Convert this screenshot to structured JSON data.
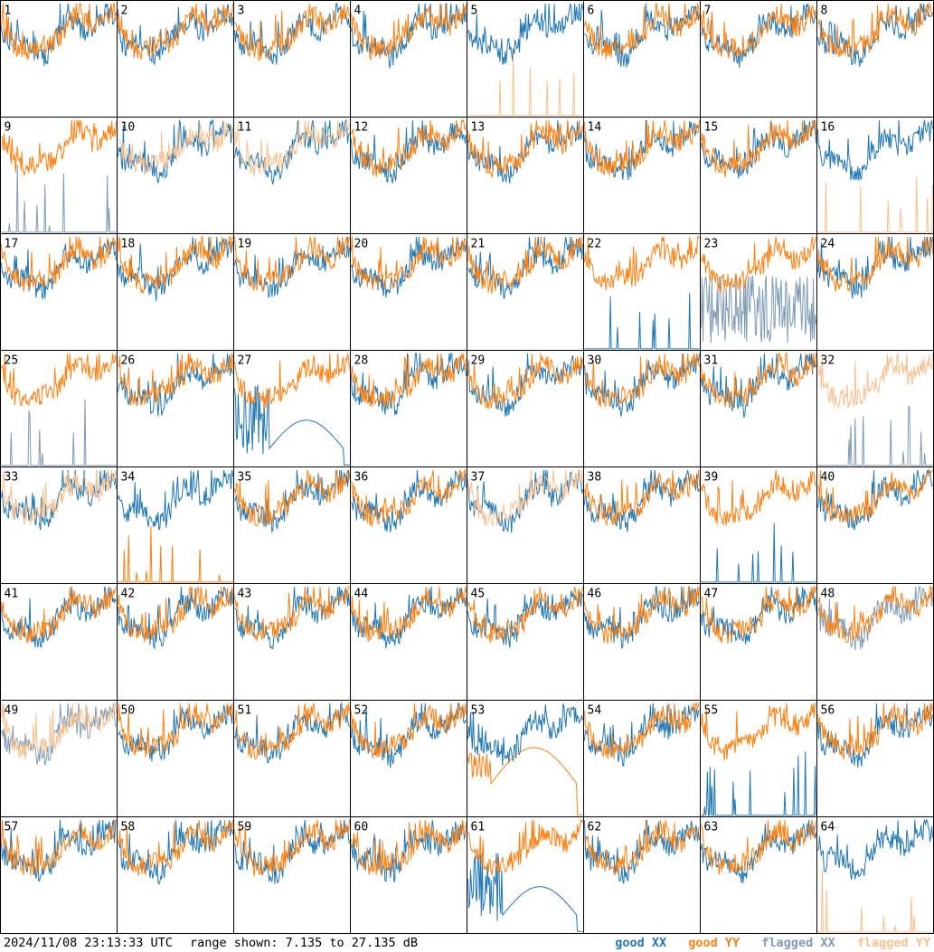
{
  "chart_data": {
    "type": "line",
    "grid": {
      "rows": 8,
      "cols": 8
    },
    "tile_ids": [
      "1",
      "2",
      "3",
      "4",
      "5",
      "6",
      "7",
      "8",
      "9",
      "10",
      "11",
      "12",
      "13",
      "14",
      "15",
      "16",
      "17",
      "18",
      "19",
      "20",
      "21",
      "22",
      "23",
      "24",
      "25",
      "26",
      "27",
      "28",
      "29",
      "30",
      "31",
      "32",
      "33",
      "34",
      "35",
      "36",
      "37",
      "38",
      "39",
      "40",
      "41",
      "42",
      "43",
      "44",
      "45",
      "46",
      "47",
      "48",
      "49",
      "50",
      "51",
      "52",
      "53",
      "54",
      "55",
      "56",
      "57",
      "58",
      "59",
      "60",
      "61",
      "62",
      "63",
      "64"
    ],
    "series": [
      {
        "name": "good XX",
        "color": "#1f77b4"
      },
      {
        "name": "good YY",
        "color": "#ff7f0e"
      },
      {
        "name": "flagged XX",
        "color": "#7f9bb5"
      },
      {
        "name": "flagged YY",
        "color": "#f9c08e"
      }
    ],
    "range_db": [
      7.135,
      27.135
    ],
    "tiles_special": {
      "5": {
        "xx": "good",
        "yy": "flagged_spikes"
      },
      "9": {
        "xx": "flagged_spikes",
        "yy": "good"
      },
      "10": {
        "xx": "good",
        "yy": "flagged"
      },
      "11": {
        "xx": "good",
        "yy": "flagged"
      },
      "16": {
        "xx": "good",
        "yy": "flagged_spikes"
      },
      "22": {
        "xx": "good_spikes",
        "yy": "good"
      },
      "23": {
        "xx": "flagged_noisy",
        "yy": "good"
      },
      "25": {
        "xx": "flagged_spikes",
        "yy": "good"
      },
      "27": {
        "xx": "good_droop",
        "yy": "good"
      },
      "32": {
        "xx": "flagged_spikes",
        "yy": "flagged"
      },
      "33": {
        "xx": "good",
        "yy": "flagged"
      },
      "34": {
        "xx": "good",
        "yy": "good_spikes"
      },
      "37": {
        "xx": "good",
        "yy": "flagged"
      },
      "39": {
        "xx": "good_spikes",
        "yy": "good"
      },
      "48": {
        "xx": "flagged",
        "yy": "good"
      },
      "49": {
        "xx": "flagged",
        "yy": "flagged"
      },
      "53": {
        "xx": "good",
        "yy": "good_droop"
      },
      "55": {
        "xx": "good_spikes",
        "yy": "good"
      },
      "61": {
        "xx": "good_droop",
        "yy": "good"
      },
      "64": {
        "xx": "good",
        "yy": "flagged_spikes"
      }
    }
  },
  "footer": {
    "timestamp": "2024/11/08 23:13:33 UTC",
    "range_text": "range shown: 7.135 to 27.135 dB",
    "legend": {
      "good_xx": "good XX",
      "good_yy": "good YY",
      "flagged_xx": "flagged XX",
      "flagged_yy": "flagged YY"
    }
  }
}
